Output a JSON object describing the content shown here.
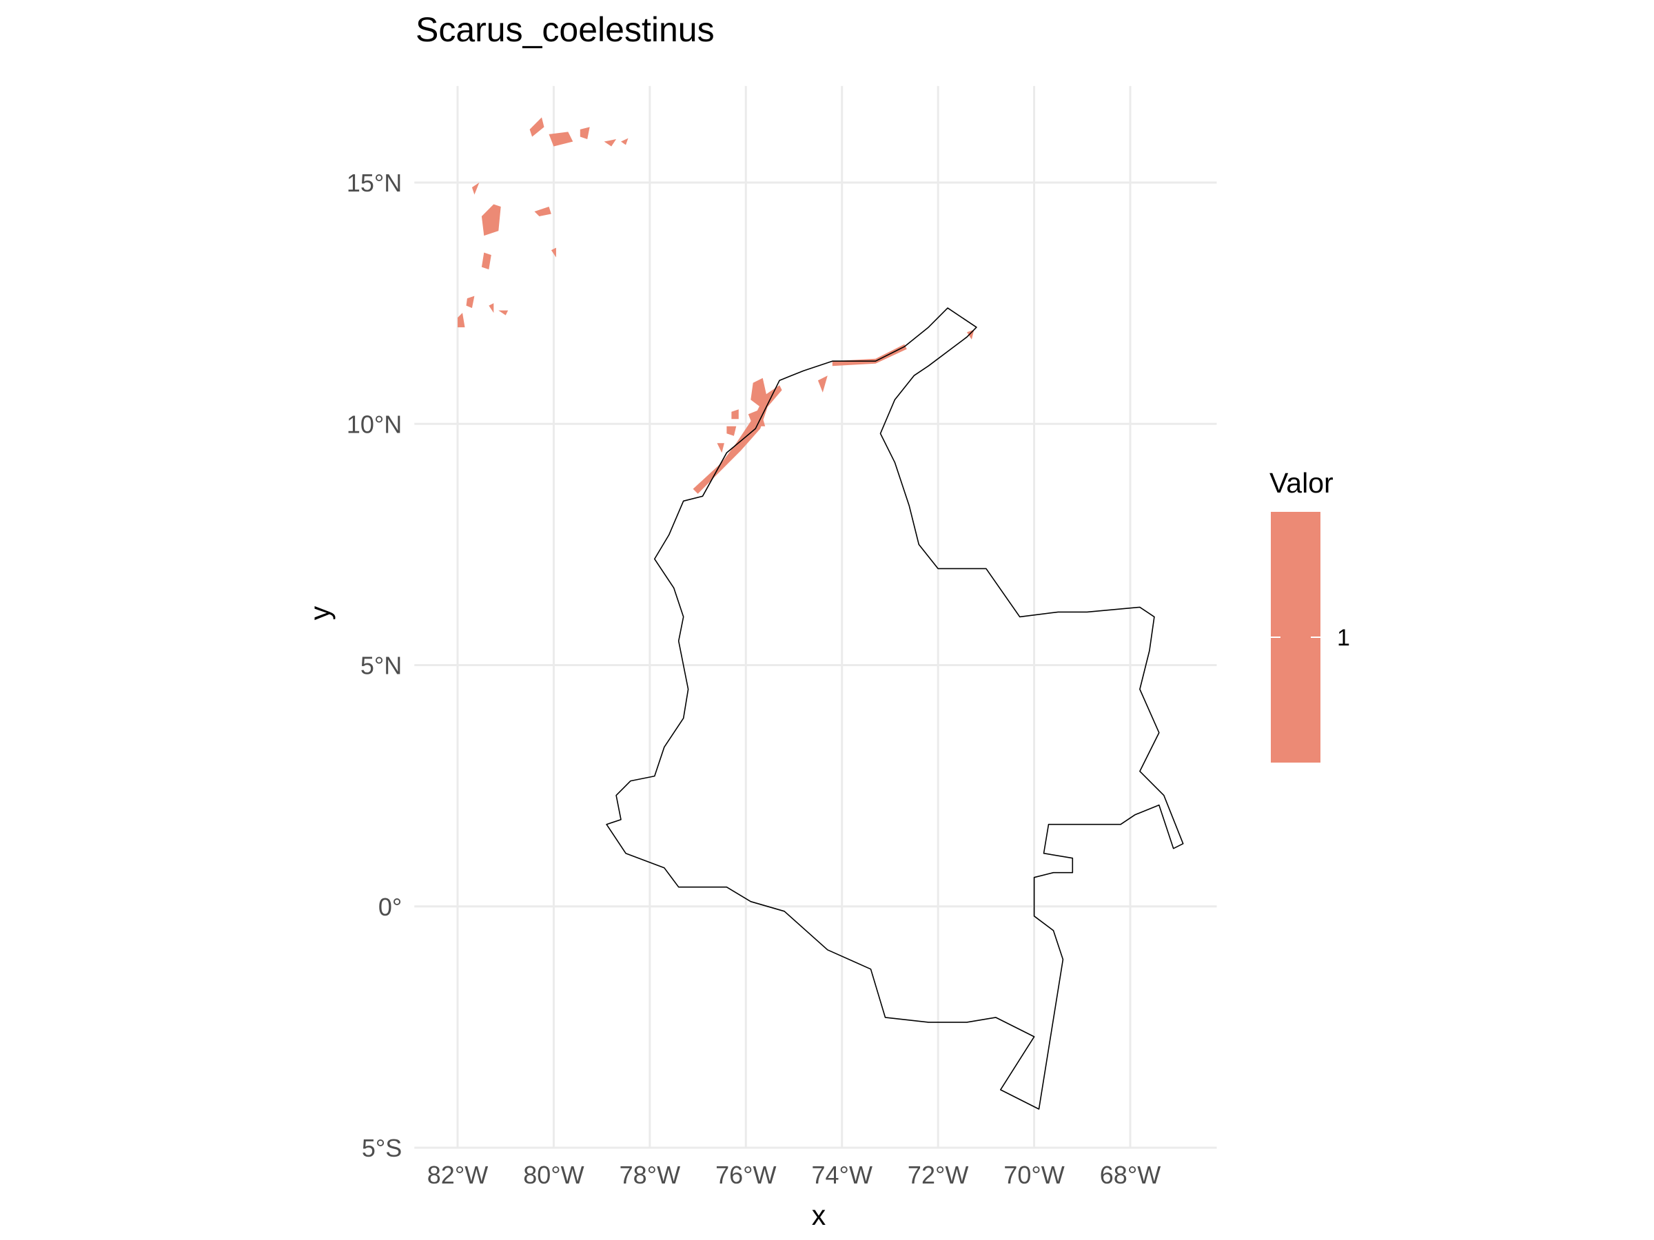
{
  "chart_data": {
    "type": "map",
    "title": "Scarus_coelestinus",
    "xlabel": "x",
    "ylabel": "y",
    "xlim": [
      -82.9,
      -66.2
    ],
    "ylim": [
      -5.0,
      17.0
    ],
    "grid": true,
    "x_ticks": [
      {
        "value": -82,
        "label": "82°W"
      },
      {
        "value": -80,
        "label": "80°W"
      },
      {
        "value": -78,
        "label": "78°W"
      },
      {
        "value": -76,
        "label": "76°W"
      },
      {
        "value": -74,
        "label": "74°W"
      },
      {
        "value": -72,
        "label": "72°W"
      },
      {
        "value": -70,
        "label": "70°W"
      },
      {
        "value": -68,
        "label": "68°W"
      }
    ],
    "y_ticks": [
      {
        "value": 15,
        "label": "15°N"
      },
      {
        "value": 10,
        "label": "10°N"
      },
      {
        "value": 5,
        "label": "5°N"
      },
      {
        "value": 0,
        "label": "0°"
      },
      {
        "value": -5,
        "label": "5°S"
      }
    ],
    "legend": {
      "title": "Valor",
      "position": "right",
      "entries": [
        {
          "label": "1",
          "color": "#ec8a75"
        }
      ]
    },
    "fill_color": "#ec8a75",
    "outline_color": "#000000",
    "outline": [
      [
        -78.9,
        1.7
      ],
      [
        -78.6,
        1.8
      ],
      [
        -78.7,
        2.3
      ],
      [
        -78.4,
        2.6
      ],
      [
        -77.9,
        2.7
      ],
      [
        -77.7,
        3.3
      ],
      [
        -77.3,
        3.9
      ],
      [
        -77.2,
        4.5
      ],
      [
        -77.4,
        5.5
      ],
      [
        -77.3,
        6.0
      ],
      [
        -77.5,
        6.6
      ],
      [
        -77.9,
        7.2
      ],
      [
        -77.6,
        7.7
      ],
      [
        -77.3,
        8.4
      ],
      [
        -76.9,
        8.5
      ],
      [
        -76.4,
        9.4
      ],
      [
        -75.8,
        9.9
      ],
      [
        -75.6,
        10.3
      ],
      [
        -75.3,
        10.9
      ],
      [
        -74.8,
        11.1
      ],
      [
        -74.2,
        11.3
      ],
      [
        -73.3,
        11.3
      ],
      [
        -72.7,
        11.6
      ],
      [
        -72.2,
        12.0
      ],
      [
        -71.8,
        12.4
      ],
      [
        -71.2,
        12.0
      ],
      [
        -71.4,
        11.8
      ],
      [
        -72.2,
        11.2
      ],
      [
        -72.5,
        11.0
      ],
      [
        -72.9,
        10.5
      ],
      [
        -73.2,
        9.8
      ],
      [
        -72.9,
        9.2
      ],
      [
        -72.6,
        8.3
      ],
      [
        -72.4,
        7.5
      ],
      [
        -72.0,
        7.0
      ],
      [
        -71.0,
        7.0
      ],
      [
        -70.3,
        6.0
      ],
      [
        -69.5,
        6.1
      ],
      [
        -68.9,
        6.1
      ],
      [
        -67.8,
        6.2
      ],
      [
        -67.5,
        6.0
      ],
      [
        -67.6,
        5.3
      ],
      [
        -67.8,
        4.5
      ],
      [
        -67.4,
        3.6
      ],
      [
        -67.8,
        2.8
      ],
      [
        -67.3,
        2.3
      ],
      [
        -66.9,
        1.3
      ],
      [
        -67.1,
        1.2
      ],
      [
        -67.4,
        2.1
      ],
      [
        -67.9,
        1.9
      ],
      [
        -68.2,
        1.7
      ],
      [
        -69.7,
        1.7
      ],
      [
        -69.8,
        1.1
      ],
      [
        -69.2,
        1.0
      ],
      [
        -69.2,
        0.7
      ],
      [
        -69.6,
        0.7
      ],
      [
        -70.0,
        0.6
      ],
      [
        -70.0,
        -0.2
      ],
      [
        -69.6,
        -0.5
      ],
      [
        -69.4,
        -1.1
      ],
      [
        -69.9,
        -4.2
      ],
      [
        -70.7,
        -3.8
      ],
      [
        -70.0,
        -2.7
      ],
      [
        -70.8,
        -2.3
      ],
      [
        -71.4,
        -2.4
      ],
      [
        -72.2,
        -2.4
      ],
      [
        -73.1,
        -2.3
      ],
      [
        -73.4,
        -1.3
      ],
      [
        -74.3,
        -0.9
      ],
      [
        -75.2,
        -0.1
      ],
      [
        -75.9,
        0.1
      ],
      [
        -76.4,
        0.4
      ],
      [
        -77.4,
        0.4
      ],
      [
        -77.7,
        0.8
      ],
      [
        -78.5,
        1.1
      ],
      [
        -78.9,
        1.7
      ]
    ],
    "habitat_areas": [
      [
        [
          -80.5,
          16.1
        ],
        [
          -80.25,
          16.35
        ],
        [
          -80.2,
          16.15
        ],
        [
          -80.45,
          15.95
        ]
      ],
      [
        [
          -80.1,
          16.0
        ],
        [
          -79.7,
          16.05
        ],
        [
          -79.6,
          15.85
        ],
        [
          -80.0,
          15.75
        ]
      ],
      [
        [
          -79.45,
          16.1
        ],
        [
          -79.25,
          16.15
        ],
        [
          -79.3,
          15.9
        ],
        [
          -79.45,
          15.95
        ]
      ],
      [
        [
          -78.95,
          15.85
        ],
        [
          -78.7,
          15.9
        ],
        [
          -78.8,
          15.75
        ]
      ],
      [
        [
          -78.6,
          15.85
        ],
        [
          -78.45,
          15.92
        ],
        [
          -78.5,
          15.78
        ]
      ],
      [
        [
          -81.5,
          14.3
        ],
        [
          -81.25,
          14.55
        ],
        [
          -81.1,
          14.5
        ],
        [
          -81.15,
          14.0
        ],
        [
          -81.45,
          13.9
        ]
      ],
      [
        [
          -81.7,
          14.9
        ],
        [
          -81.55,
          15.0
        ],
        [
          -81.65,
          14.75
        ]
      ],
      [
        [
          -80.4,
          14.4
        ],
        [
          -80.1,
          14.5
        ],
        [
          -80.05,
          14.35
        ],
        [
          -80.3,
          14.3
        ]
      ],
      [
        [
          -80.05,
          13.6
        ],
        [
          -79.95,
          13.65
        ],
        [
          -79.95,
          13.45
        ]
      ],
      [
        [
          -81.45,
          13.55
        ],
        [
          -81.3,
          13.5
        ],
        [
          -81.35,
          13.2
        ],
        [
          -81.5,
          13.25
        ]
      ],
      [
        [
          -81.8,
          12.6
        ],
        [
          -81.65,
          12.65
        ],
        [
          -81.7,
          12.4
        ],
        [
          -81.82,
          12.45
        ]
      ],
      [
        [
          -81.35,
          12.45
        ],
        [
          -81.25,
          12.5
        ],
        [
          -81.25,
          12.3
        ]
      ],
      [
        [
          -81.15,
          12.35
        ],
        [
          -80.95,
          12.35
        ],
        [
          -81.0,
          12.25
        ]
      ],
      [
        [
          -82.0,
          12.2
        ],
        [
          -81.9,
          12.3
        ],
        [
          -81.85,
          12.0
        ],
        [
          -82.0,
          12.0
        ]
      ],
      [
        [
          -77.1,
          8.65
        ],
        [
          -76.5,
          9.2
        ],
        [
          -76.2,
          9.6
        ],
        [
          -75.8,
          10.2
        ],
        [
          -75.6,
          10.6
        ],
        [
          -75.3,
          10.8
        ],
        [
          -75.25,
          10.7
        ],
        [
          -75.55,
          10.35
        ],
        [
          -75.7,
          9.9
        ],
        [
          -76.1,
          9.45
        ],
        [
          -76.5,
          9.05
        ],
        [
          -77.0,
          8.55
        ]
      ],
      [
        [
          -75.85,
          10.85
        ],
        [
          -75.65,
          10.95
        ],
        [
          -75.55,
          10.5
        ],
        [
          -75.7,
          10.35
        ],
        [
          -75.9,
          10.5
        ]
      ],
      [
        [
          -75.95,
          10.2
        ],
        [
          -75.7,
          10.3
        ],
        [
          -75.6,
          9.95
        ],
        [
          -75.85,
          9.95
        ]
      ],
      [
        [
          -76.3,
          10.25
        ],
        [
          -76.15,
          10.3
        ],
        [
          -76.15,
          10.1
        ],
        [
          -76.3,
          10.1
        ]
      ],
      [
        [
          -76.4,
          9.95
        ],
        [
          -76.2,
          9.95
        ],
        [
          -76.25,
          9.75
        ],
        [
          -76.4,
          9.8
        ]
      ],
      [
        [
          -76.6,
          9.6
        ],
        [
          -76.45,
          9.6
        ],
        [
          -76.5,
          9.4
        ]
      ],
      [
        [
          -74.2,
          11.3
        ],
        [
          -73.3,
          11.35
        ],
        [
          -72.7,
          11.65
        ],
        [
          -72.65,
          11.55
        ],
        [
          -73.3,
          11.25
        ],
        [
          -74.2,
          11.2
        ]
      ],
      [
        [
          -71.4,
          11.9
        ],
        [
          -71.25,
          11.95
        ],
        [
          -71.3,
          11.75
        ]
      ],
      [
        [
          -74.5,
          10.9
        ],
        [
          -74.3,
          11.0
        ],
        [
          -74.4,
          10.65
        ]
      ]
    ]
  }
}
